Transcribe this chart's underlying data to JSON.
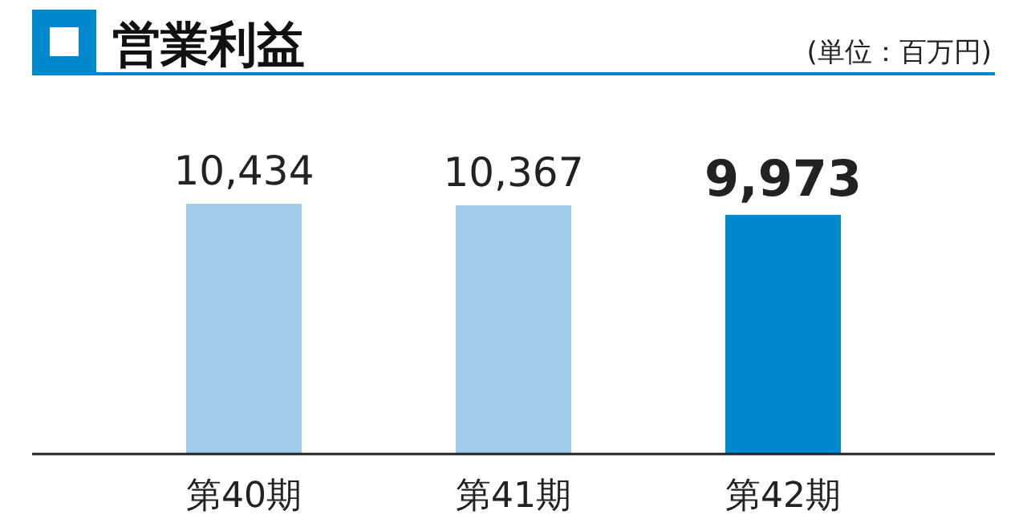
{
  "chart_data": {
    "type": "bar",
    "title": "営業利益",
    "annotations": [
      "(単位：百万円)"
    ],
    "categories": [
      "第40期",
      "第41期",
      "第42期"
    ],
    "values": [
      10434,
      10367,
      9973
    ],
    "colors": [
      "#a0cbea",
      "#a0cbea",
      "#0088cf"
    ],
    "value_labels": [
      "10,434",
      "10,367",
      "9,973"
    ]
  }
}
